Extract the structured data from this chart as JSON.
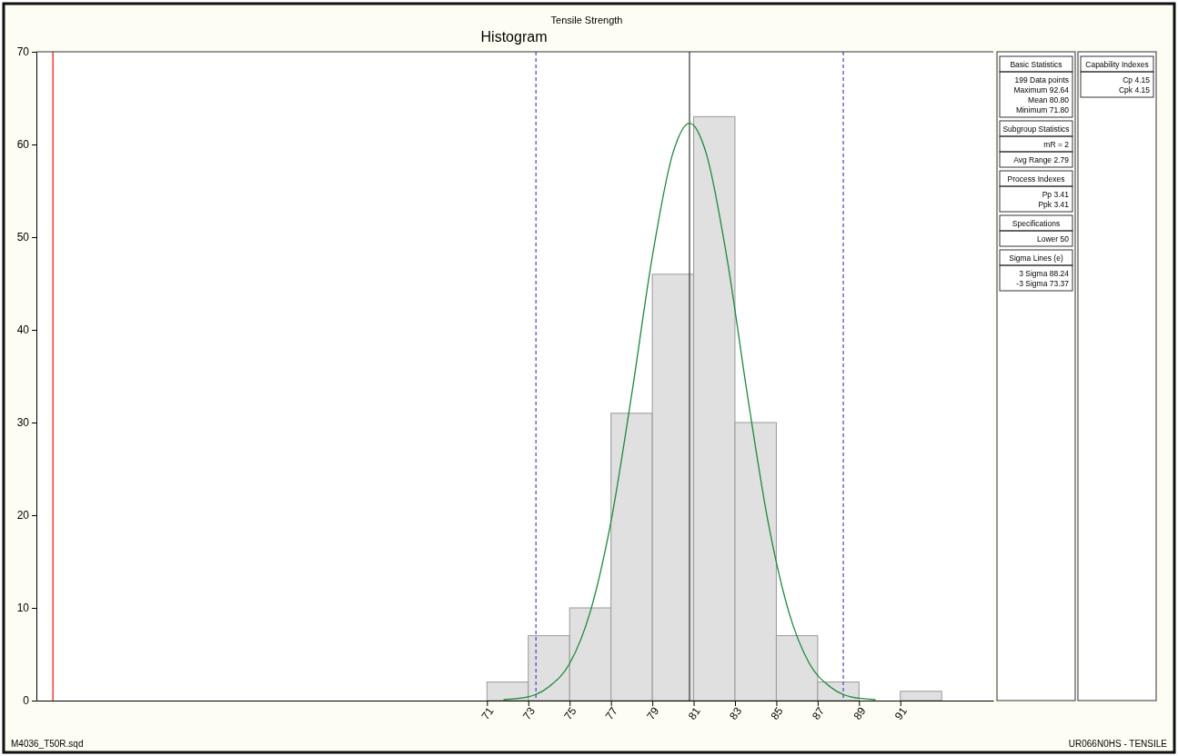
{
  "chart_data": {
    "type": "histogram",
    "title": "Tensile Strength",
    "subtitle": "Histogram",
    "bins": [
      71,
      73,
      75,
      77,
      79,
      81,
      83,
      85,
      87,
      89,
      91,
      93
    ],
    "values": [
      2,
      7,
      10,
      31,
      46,
      63,
      30,
      7,
      2,
      0,
      1
    ],
    "color": "#e0e0e0",
    "series": [
      {
        "type": "line",
        "color": "#1a8a3a",
        "x": [
          71.8,
          73,
          74,
          75,
          76,
          77,
          78,
          79,
          80,
          80.8,
          81.6,
          82.6,
          83.6,
          84.6,
          85.6,
          86.6,
          87.6,
          88.6,
          89.8
        ],
        "values": [
          0.1,
          0.4,
          1.5,
          4.0,
          9.6,
          19.3,
          33.0,
          47.9,
          59.1,
          62.3,
          59.1,
          47.9,
          33.0,
          19.3,
          9.6,
          4.0,
          1.5,
          0.4,
          0.1
        ]
      }
    ],
    "xlim": [
      49.2,
      95.5
    ],
    "xticks": [
      71,
      73,
      75,
      77,
      79,
      81,
      83,
      85,
      87,
      89,
      91
    ],
    "ylim": [
      0,
      70
    ],
    "yticks": [
      0,
      10,
      20,
      30,
      40,
      50,
      60,
      70
    ],
    "grid": false,
    "ref_lines": [
      {
        "axis": "x",
        "value": 50,
        "color": "#ff0000",
        "line_style": "solid"
      },
      {
        "axis": "x",
        "value": 73.37,
        "color": "#4444cc",
        "line_style": "dashed"
      },
      {
        "axis": "x",
        "value": 88.24,
        "color": "#4444cc",
        "line_style": "dashed"
      },
      {
        "axis": "x",
        "value": 80.8,
        "color": "#333333",
        "line_style": "solid"
      }
    ],
    "annotations": [
      "Basic Statistics",
      "199 Data points",
      "Maximum 92.64",
      "Mean 80.80",
      "Minimum 71.80",
      "Subgroup Statistics",
      "mR = 2",
      "Avg Range  2.79",
      "Process Indexes",
      "Pp  3.41",
      "Ppk  3.41",
      "Specifications",
      "Lower 50",
      "Sigma Lines (e)",
      "3 Sigma 88.24",
      "-3 Sigma 73.37",
      "Capability Indexes",
      "Cp 4.15",
      "Cpk 4.15",
      "M4036_T50R.sqd",
      "UR066N0HS - TENSILE"
    ]
  }
}
